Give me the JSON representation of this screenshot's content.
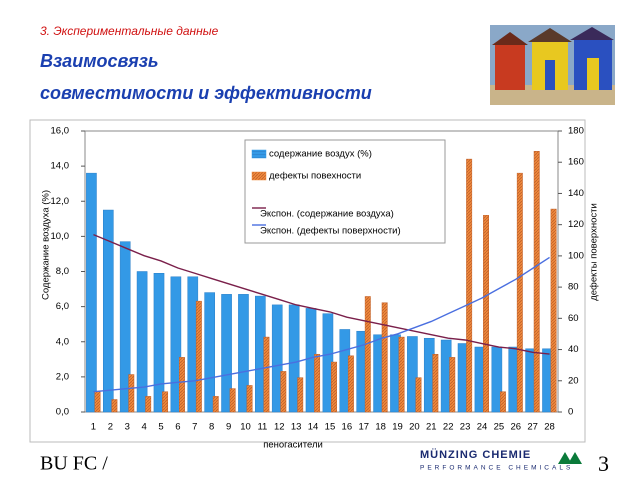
{
  "slide": {
    "section": "3. Экспериментальные данные",
    "title_line1": "Взаимосвязь",
    "title_line2": "совместимости и эффективности",
    "footer": "BU FC /",
    "logo_name": "MÜNZING CHEMIE",
    "logo_tagline": "PERFORMANCE CHEMICALS",
    "page_number": "3"
  },
  "chart_data": {
    "type": "bar",
    "x_label": "пеногасители",
    "y_label": "Содержание воздуха (%)",
    "y2_label": "дефекты поверхности",
    "categories": [
      "1",
      "2",
      "3",
      "4",
      "5",
      "6",
      "7",
      "8",
      "9",
      "10",
      "11",
      "12",
      "13",
      "14",
      "15",
      "16",
      "17",
      "18",
      "19",
      "20",
      "21",
      "22",
      "23",
      "24",
      "25",
      "26",
      "27",
      "28"
    ],
    "series": [
      {
        "name": "содержание воздух (%)",
        "type": "bar",
        "color": "#3399e6",
        "values": [
          13.6,
          11.5,
          9.7,
          8.0,
          7.9,
          7.7,
          7.7,
          6.8,
          6.7,
          6.7,
          6.6,
          6.1,
          6.1,
          5.9,
          5.6,
          4.7,
          4.6,
          4.4,
          4.4,
          4.3,
          4.2,
          4.1,
          3.9,
          3.7,
          3.7,
          3.7,
          3.6,
          3.6
        ]
      },
      {
        "name": "дефекты повехности",
        "type": "bar",
        "axis": "y2",
        "color": "#f08a3c",
        "values": [
          13,
          8,
          24,
          10,
          13,
          35,
          71,
          10,
          15,
          17,
          48,
          26,
          22,
          37,
          32,
          36,
          74,
          70,
          48,
          22,
          37,
          35,
          162,
          126,
          13,
          153,
          167,
          130
        ]
      },
      {
        "name": "Экспон. (содержание воздуха)",
        "type": "line",
        "color": "#7a1f4a",
        "values": [
          10.1,
          9.7,
          9.3,
          8.9,
          8.6,
          8.2,
          7.9,
          7.6,
          7.3,
          7.0,
          6.7,
          6.4,
          6.1,
          5.9,
          5.7,
          5.4,
          5.2,
          5.0,
          4.8,
          4.6,
          4.4,
          4.2,
          4.1,
          3.9,
          3.7,
          3.6,
          3.4,
          3.3
        ]
      },
      {
        "name": "Экспон. (дефекты поверхности)",
        "type": "line",
        "axis": "y2",
        "color": "#4a6fe0",
        "values": [
          13,
          14,
          15,
          16,
          18,
          19,
          20,
          22,
          24,
          26,
          28,
          30,
          32,
          35,
          37,
          40,
          43,
          47,
          50,
          54,
          58,
          63,
          68,
          73,
          79,
          85,
          92,
          99
        ]
      }
    ],
    "ylim": [
      0,
      16
    ],
    "yticks": [
      {
        "value": 0,
        "label": "0,0"
      },
      {
        "value": 2,
        "label": "2,0"
      },
      {
        "value": 4,
        "label": "4,0"
      },
      {
        "value": 6,
        "label": "6,0"
      },
      {
        "value": 8,
        "label": "8,0"
      },
      {
        "value": 10,
        "label": "10,0"
      },
      {
        "value": 12,
        "label": "12,0"
      },
      {
        "value": 14,
        "label": "14,0"
      },
      {
        "value": 16,
        "label": "16,0"
      }
    ],
    "y2lim": [
      0,
      180
    ],
    "y2ticks": [
      0,
      20,
      40,
      60,
      80,
      100,
      120,
      140,
      160,
      180
    ],
    "grid": false
  }
}
